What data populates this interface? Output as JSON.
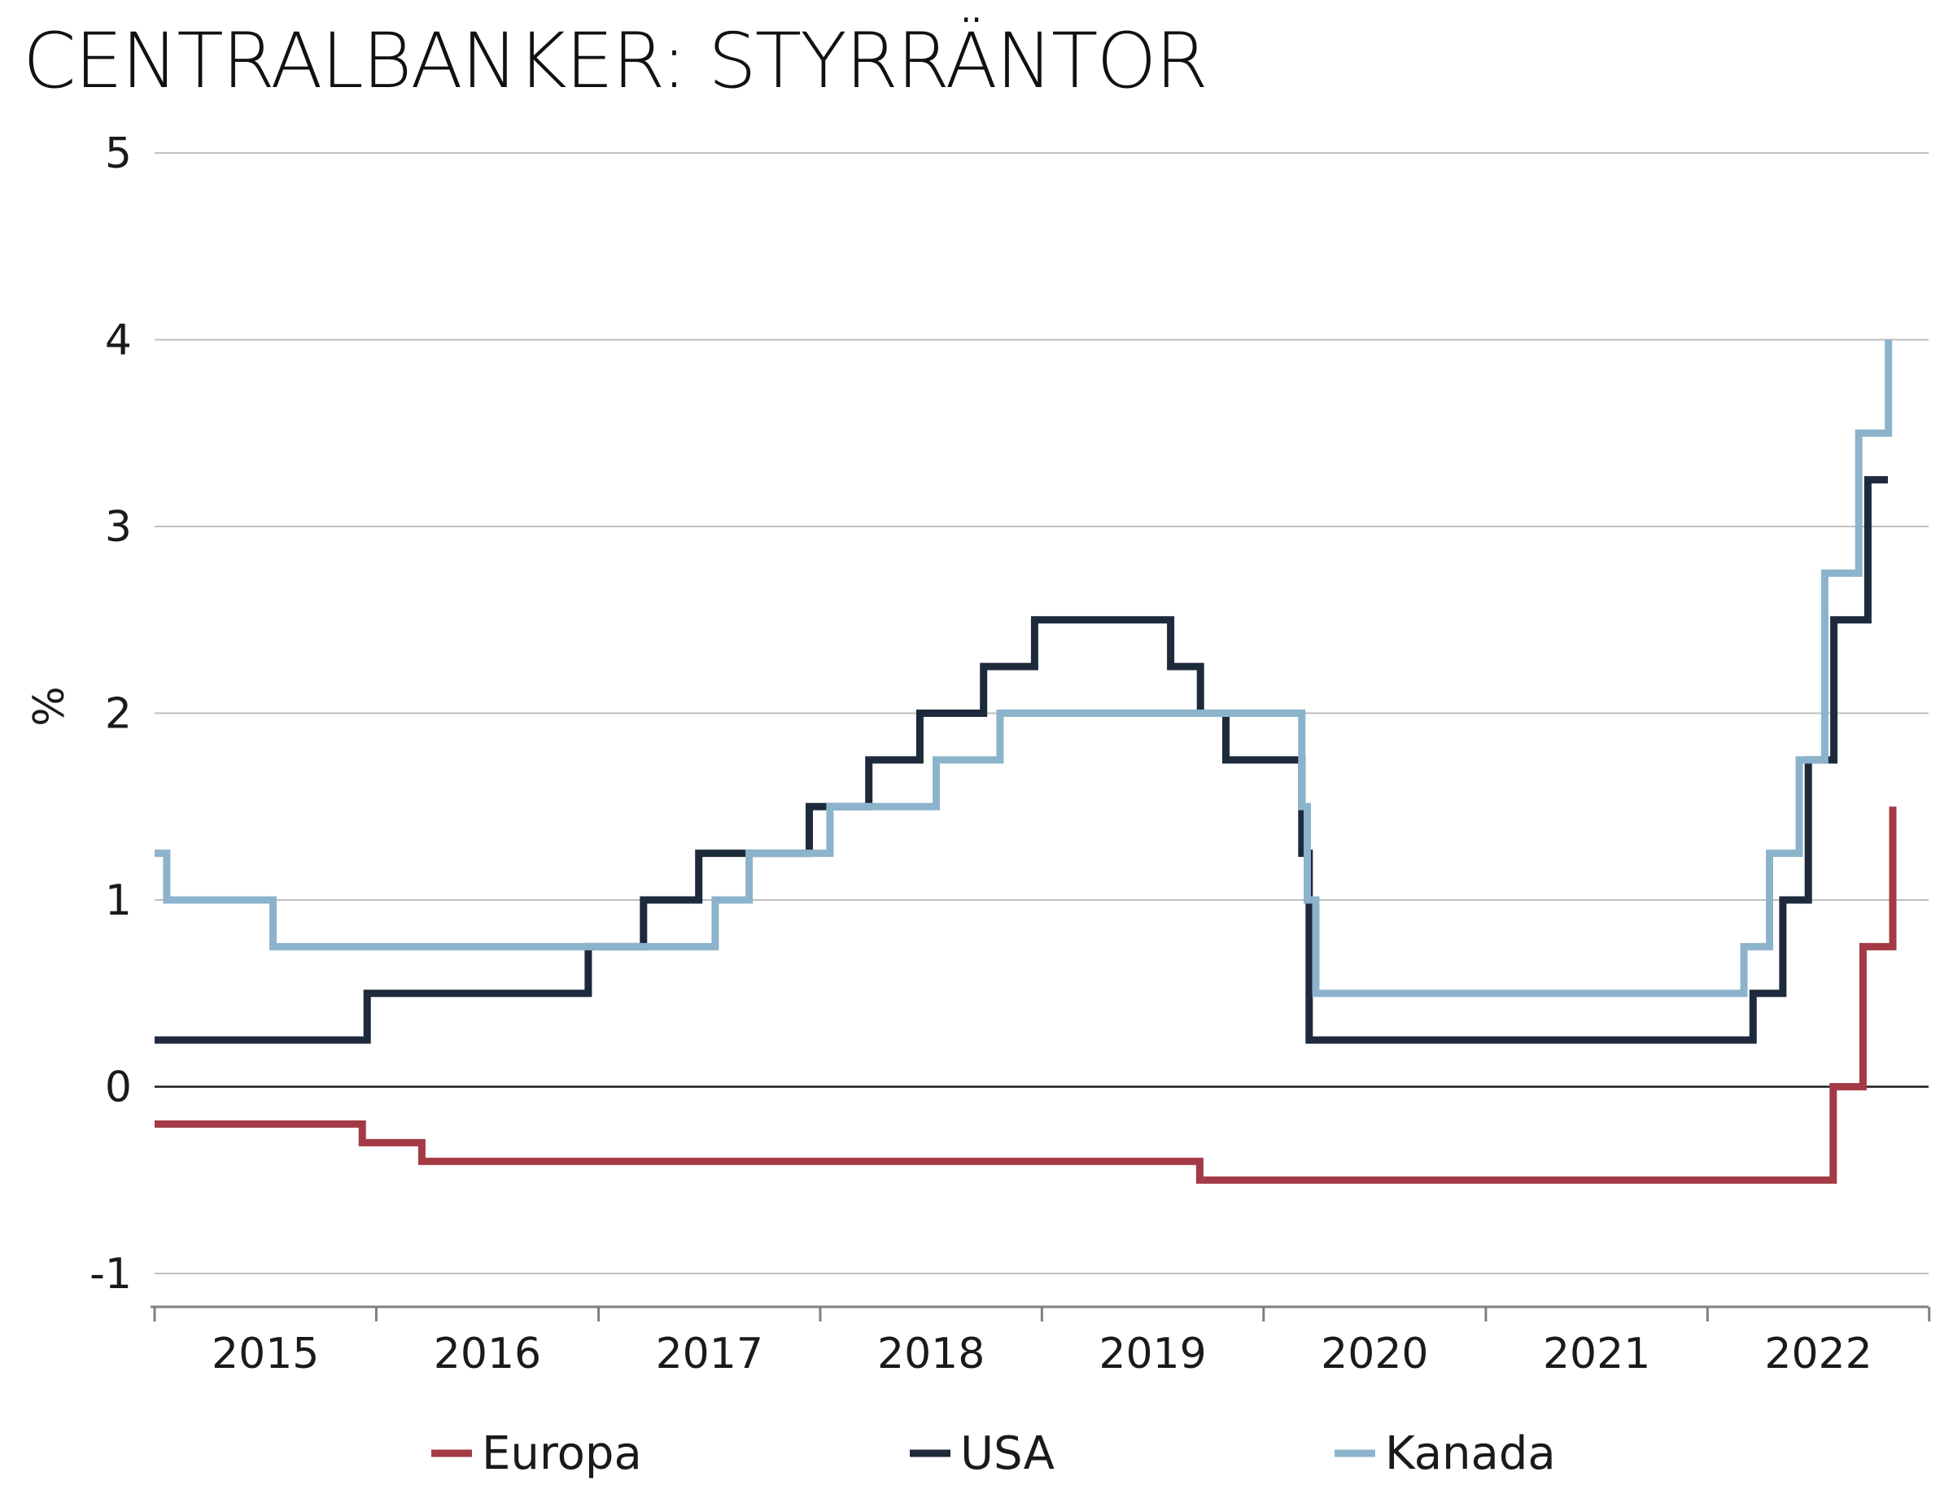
{
  "chart_data": {
    "type": "line",
    "step": true,
    "title": "CENTRALBANKER: STYRRÄNTOR",
    "ylabel": "%",
    "xlabel": "",
    "ylim": [
      -1,
      5
    ],
    "yticks": [
      -1,
      0,
      1,
      2,
      3,
      4,
      5
    ],
    "xlim": [
      "2015-01-01",
      "2022-12-31"
    ],
    "xticks": [
      "2015",
      "2016",
      "2017",
      "2018",
      "2019",
      "2020",
      "2021",
      "2022"
    ],
    "grid": true,
    "legend_position": "bottom",
    "series": [
      {
        "name": "Europa",
        "color": "#a33a45",
        "points": [
          [
            "2015-01-01",
            -0.2
          ],
          [
            "2015-12-09",
            -0.3
          ],
          [
            "2016-03-16",
            -0.4
          ],
          [
            "2019-09-18",
            -0.5
          ],
          [
            "2022-07-27",
            0.0
          ],
          [
            "2022-09-14",
            0.75
          ],
          [
            "2022-11-02",
            1.5
          ]
        ],
        "end": "2022-11-02"
      },
      {
        "name": "USA",
        "color": "#1c2a3c",
        "points": [
          [
            "2015-01-01",
            0.25
          ],
          [
            "2015-12-17",
            0.5
          ],
          [
            "2016-12-15",
            0.75
          ],
          [
            "2017-03-16",
            1.0
          ],
          [
            "2017-06-15",
            1.25
          ],
          [
            "2017-12-14",
            1.5
          ],
          [
            "2018-03-22",
            1.75
          ],
          [
            "2018-06-14",
            2.0
          ],
          [
            "2018-09-27",
            2.25
          ],
          [
            "2018-12-20",
            2.5
          ],
          [
            "2019-08-01",
            2.25
          ],
          [
            "2019-09-19",
            2.0
          ],
          [
            "2019-10-31",
            1.75
          ],
          [
            "2020-03-04",
            1.25
          ],
          [
            "2020-03-16",
            0.25
          ],
          [
            "2022-03-17",
            0.5
          ],
          [
            "2022-05-05",
            1.0
          ],
          [
            "2022-06-16",
            1.75
          ],
          [
            "2022-07-28",
            2.5
          ],
          [
            "2022-09-22",
            3.25
          ]
        ],
        "end": "2022-10-25"
      },
      {
        "name": "Kanada",
        "color": "#8cb3cc",
        "points": [
          [
            "2015-01-01",
            1.25
          ],
          [
            "2015-01-21",
            1.0
          ],
          [
            "2015-07-15",
            0.75
          ],
          [
            "2017-07-12",
            1.0
          ],
          [
            "2017-09-06",
            1.25
          ],
          [
            "2018-01-17",
            1.5
          ],
          [
            "2018-07-11",
            1.75
          ],
          [
            "2018-10-24",
            2.0
          ],
          [
            "2020-03-04",
            1.5
          ],
          [
            "2020-03-13",
            1.0
          ],
          [
            "2020-03-27",
            0.5
          ],
          [
            "2022-03-02",
            0.75
          ],
          [
            "2022-04-13",
            1.25
          ],
          [
            "2022-06-01",
            1.75
          ],
          [
            "2022-07-13",
            2.75
          ],
          [
            "2022-09-07",
            3.5
          ],
          [
            "2022-10-26",
            4.0
          ]
        ],
        "end": "2022-10-26"
      }
    ]
  }
}
